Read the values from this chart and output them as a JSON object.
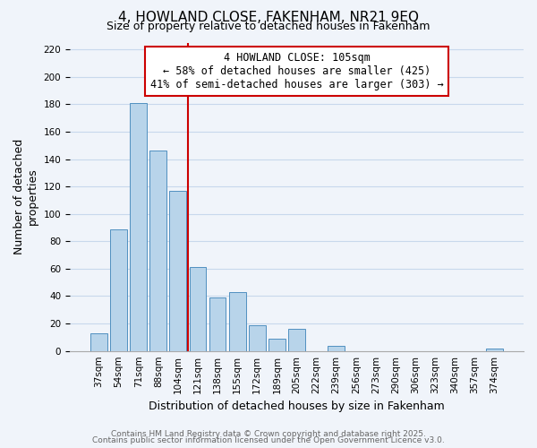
{
  "title": "4, HOWLAND CLOSE, FAKENHAM, NR21 9EQ",
  "subtitle": "Size of property relative to detached houses in Fakenham",
  "xlabel": "Distribution of detached houses by size in Fakenham",
  "ylabel": "Number of detached\nproperties",
  "categories": [
    "37sqm",
    "54sqm",
    "71sqm",
    "88sqm",
    "104sqm",
    "121sqm",
    "138sqm",
    "155sqm",
    "172sqm",
    "189sqm",
    "205sqm",
    "222sqm",
    "239sqm",
    "256sqm",
    "273sqm",
    "290sqm",
    "306sqm",
    "323sqm",
    "340sqm",
    "357sqm",
    "374sqm"
  ],
  "values": [
    13,
    89,
    181,
    146,
    117,
    61,
    39,
    43,
    19,
    9,
    16,
    0,
    4,
    0,
    0,
    0,
    0,
    0,
    0,
    0,
    2
  ],
  "bar_color": "#b8d4ea",
  "bar_edge_color": "#5090c0",
  "vline_index": 4,
  "vline_color": "#cc0000",
  "annotation_line1": "4 HOWLAND CLOSE: 105sqm",
  "annotation_line2": "← 58% of detached houses are smaller (425)",
  "annotation_line3": "41% of semi-detached houses are larger (303) →",
  "annotation_box_color": "#ffffff",
  "annotation_box_edge_color": "#cc0000",
  "ylim": [
    0,
    225
  ],
  "yticks": [
    0,
    20,
    40,
    60,
    80,
    100,
    120,
    140,
    160,
    180,
    200,
    220
  ],
  "grid_color": "#c8d8ec",
  "background_color": "#f0f4fa",
  "footer_line1": "Contains HM Land Registry data © Crown copyright and database right 2025.",
  "footer_line2": "Contains public sector information licensed under the Open Government Licence v3.0.",
  "title_fontsize": 11,
  "subtitle_fontsize": 9,
  "axis_label_fontsize": 9,
  "tick_fontsize": 7.5,
  "annotation_fontsize": 8.5,
  "footer_fontsize": 6.5
}
